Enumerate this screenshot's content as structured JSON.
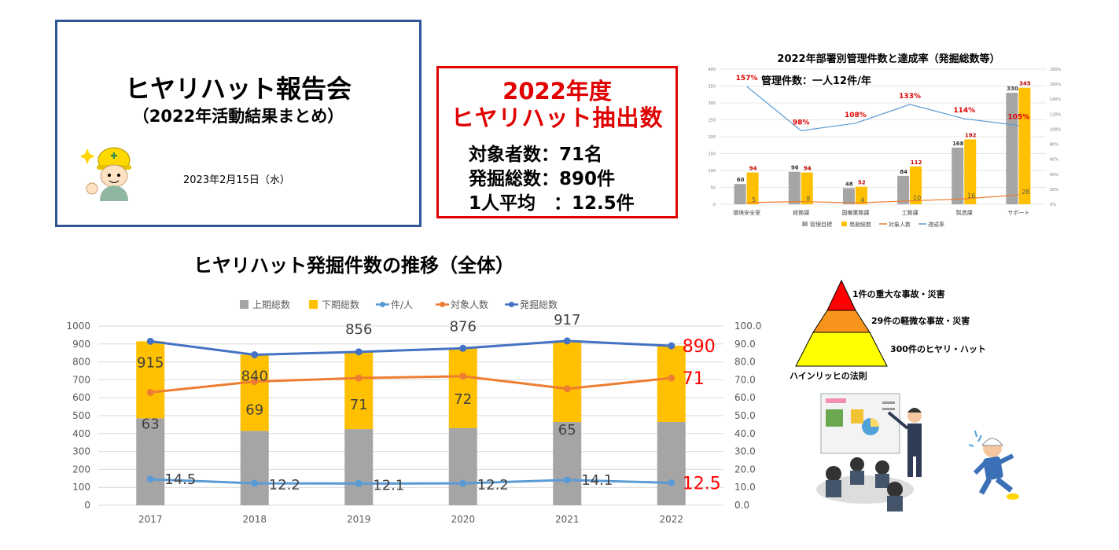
{
  "title_slide": {
    "title": "ヒヤリハット報告会",
    "subtitle": "（2022年活動結果まとめ）",
    "date": "2023年2月15日（水）"
  },
  "stats": {
    "year_label": "2022年度",
    "headline": "ヒヤリハット抽出数",
    "targets": "対象者数：71名",
    "total": "発掘総数：890件",
    "average": "1人平均　：12.5件"
  },
  "pyramid": {
    "levels": [
      {
        "label": "1件の重大な事故・災害",
        "color": "#ff0000"
      },
      {
        "label": "29件の軽微な事故・災害",
        "color": "#f7941d"
      },
      {
        "label": "300件のヒヤリ・ハット",
        "color": "#ffff00"
      }
    ],
    "caption": "ハインリッヒの法則"
  },
  "chart_data": [
    {
      "type": "bar",
      "title": "2022年部署別管理件数と達成率（発掘総数等）",
      "note": "管理件数：一人12件/年",
      "categories": [
        "環境安全室",
        "総務課",
        "国備業務課",
        "工務課",
        "製造課",
        "サポート"
      ],
      "ylim": [
        0,
        400
      ],
      "y_ticks": [
        "0",
        "50",
        "100",
        "150",
        "200",
        "250",
        "300",
        "350",
        "400"
      ],
      "y2lim": [
        0,
        180
      ],
      "y2_ticks": [
        "0%",
        "20%",
        "40%",
        "60%",
        "80%",
        "100%",
        "120%",
        "140%",
        "160%",
        "180%"
      ],
      "series": [
        {
          "name": "管理目標",
          "kind": "bar",
          "color": "#a5a5a5",
          "values": [
            60,
            96,
            48,
            84,
            168,
            330
          ]
        },
        {
          "name": "発掘総数",
          "kind": "bar",
          "color": "#ffc000",
          "values": [
            94,
            94,
            52,
            112,
            192,
            345
          ]
        },
        {
          "name": "対象人数",
          "kind": "line",
          "color": "#ed7d31",
          "values": [
            5,
            8,
            4,
            10,
            16,
            28
          ]
        },
        {
          "name": "達成率",
          "kind": "line",
          "axis": "right",
          "color": "#5b9bd5",
          "values": [
            157,
            98,
            108,
            133,
            114,
            105
          ],
          "labels": [
            "157%",
            "98%",
            "108%",
            "133%",
            "114%",
            "105%"
          ],
          "label_color": "#e00000"
        }
      ]
    },
    {
      "type": "bar",
      "title": "ヒヤリハット発掘件数の推移（全体）",
      "categories": [
        "2017",
        "2018",
        "2019",
        "2020",
        "2021",
        "2022"
      ],
      "ylim": [
        0,
        1000
      ],
      "y_ticks": [
        "0",
        "100",
        "200",
        "300",
        "400",
        "500",
        "600",
        "700",
        "800",
        "900",
        "1000"
      ],
      "y2lim": [
        0,
        100
      ],
      "y2_ticks": [
        "0.0",
        "10.0",
        "20.0",
        "30.0",
        "40.0",
        "50.0",
        "60.0",
        "70.0",
        "80.0",
        "90.0",
        "100.0"
      ],
      "stacked": true,
      "series": [
        {
          "name": "上期総数",
          "kind": "bar",
          "color": "#a5a5a5",
          "values": [
            485,
            415,
            425,
            430,
            465,
            465
          ]
        },
        {
          "name": "下期総数",
          "kind": "bar",
          "color": "#ffc000",
          "values": [
            430,
            425,
            431,
            446,
            452,
            425
          ]
        },
        {
          "name": "件/人",
          "kind": "line",
          "axis": "right",
          "color": "#5b9bd5",
          "values": [
            14.5,
            12.2,
            12.1,
            12.2,
            14.1,
            12.5
          ],
          "labels": [
            "14.5",
            "12.2",
            "12.1",
            "12.2",
            "14.1",
            "12.5"
          ]
        },
        {
          "name": "対象人数",
          "kind": "line",
          "axis": "right",
          "color": "#ed7d31",
          "values": [
            63,
            69,
            71,
            72,
            65,
            71
          ],
          "labels": [
            "63",
            "69",
            "71",
            "72",
            "65",
            "71"
          ]
        },
        {
          "name": "発掘総数",
          "kind": "line",
          "color": "#4472c4",
          "values": [
            915,
            840,
            856,
            876,
            917,
            890
          ],
          "labels": [
            "915",
            "840",
            "856",
            "876",
            "917",
            "890"
          ]
        }
      ],
      "highlight_color": "#ff0000"
    }
  ]
}
